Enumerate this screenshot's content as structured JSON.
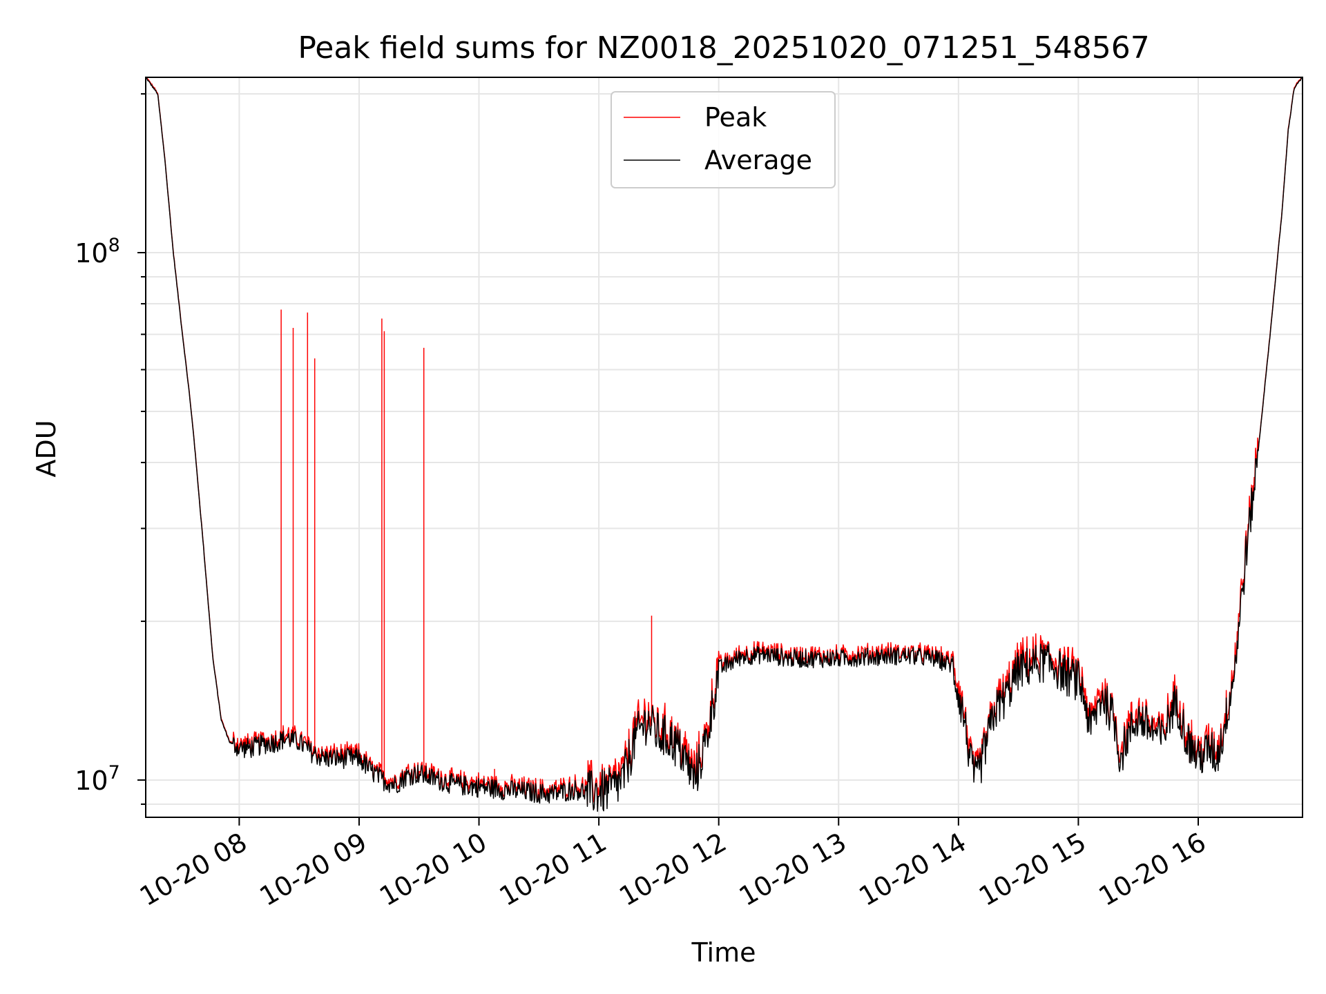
{
  "chart_data": {
    "type": "line",
    "title": "Peak field sums for NZ0018_20251020_071251_548567",
    "xlabel": "Time",
    "ylabel": "ADU",
    "xlim": [
      7.22,
      16.87
    ],
    "ylim": [
      8500000,
      215000000
    ],
    "yscale": "log",
    "grid": true,
    "legend_position": "upper center",
    "x_ticks": [
      {
        "value": 8,
        "label": "10-20 08"
      },
      {
        "value": 9,
        "label": "10-20 09"
      },
      {
        "value": 10,
        "label": "10-20 10"
      },
      {
        "value": 11,
        "label": "10-20 11"
      },
      {
        "value": 12,
        "label": "10-20 12"
      },
      {
        "value": 13,
        "label": "10-20 13"
      },
      {
        "value": 14,
        "label": "10-20 14"
      },
      {
        "value": 15,
        "label": "10-20 15"
      },
      {
        "value": 16,
        "label": "10-20 16"
      }
    ],
    "y_ticks": [
      {
        "value": 10000000,
        "base": "10",
        "exp": "7"
      },
      {
        "value": 100000000,
        "base": "10",
        "exp": "8"
      }
    ],
    "series": [
      {
        "name": "Peak",
        "color": "#ff0000",
        "spikes": [
          {
            "x": 8.35,
            "y": 78000000
          },
          {
            "x": 8.45,
            "y": 72000000
          },
          {
            "x": 8.57,
            "y": 77000000
          },
          {
            "x": 8.63,
            "y": 63000000
          },
          {
            "x": 9.19,
            "y": 75000000
          },
          {
            "x": 9.21,
            "y": 71000000
          },
          {
            "x": 9.54,
            "y": 66000000
          },
          {
            "x": 10.13,
            "y": 10500000
          },
          {
            "x": 11.44,
            "y": 20500000
          }
        ]
      },
      {
        "name": "Average",
        "color": "#000000",
        "x": [
          7.22,
          7.32,
          7.38,
          7.45,
          7.52,
          7.58,
          7.62,
          7.7,
          7.78,
          7.85,
          7.92,
          8.0,
          8.1,
          8.2,
          8.3,
          8.4,
          8.5,
          8.6,
          8.7,
          8.8,
          8.9,
          9.0,
          9.1,
          9.2,
          9.3,
          9.4,
          9.5,
          9.6,
          9.8,
          10.0,
          10.2,
          10.4,
          10.6,
          10.7,
          10.8,
          10.9,
          11.0,
          11.1,
          11.2,
          11.3,
          11.4,
          11.5,
          11.6,
          11.7,
          11.8,
          11.85,
          11.9,
          12.0,
          12.2,
          12.4,
          12.6,
          12.8,
          13.0,
          13.2,
          13.4,
          13.6,
          13.8,
          13.95,
          14.05,
          14.1,
          14.15,
          14.2,
          14.3,
          14.4,
          14.5,
          14.6,
          14.7,
          14.8,
          14.9,
          15.0,
          15.05,
          15.1,
          15.2,
          15.3,
          15.35,
          15.4,
          15.5,
          15.6,
          15.7,
          15.8,
          15.85,
          15.9,
          16.0,
          16.1,
          16.15,
          16.2,
          16.3,
          16.4,
          16.5,
          16.6,
          16.7,
          16.75,
          16.8,
          16.87
        ],
        "y": [
          215000000,
          200000000,
          150000000,
          100000000,
          72000000,
          55000000,
          45000000,
          28000000,
          17000000,
          13000000,
          11800000,
          11500000,
          11500000,
          11700000,
          11800000,
          12000000,
          11800000,
          11300000,
          11000000,
          11000000,
          11000000,
          11000000,
          10400000,
          10000000,
          9800000,
          10200000,
          10300000,
          10100000,
          9800000,
          9700000,
          9600000,
          9500000,
          9400000,
          9500000,
          9600000,
          9500000,
          9500000,
          9600000,
          10000000,
          12000000,
          13000000,
          12200000,
          12000000,
          11200000,
          10000000,
          11000000,
          12000000,
          16200000,
          17200000,
          17300000,
          17000000,
          17000000,
          17000000,
          17100000,
          17200000,
          17200000,
          17000000,
          16500000,
          13000000,
          10800000,
          10000000,
          11000000,
          13500000,
          14500000,
          16200000,
          16500000,
          16800000,
          16500000,
          15800000,
          15500000,
          14300000,
          12500000,
          14500000,
          13000000,
          11000000,
          12000000,
          13200000,
          12500000,
          12000000,
          14000000,
          13500000,
          12000000,
          11000000,
          11500000,
          11000000,
          12000000,
          16000000,
          27000000,
          42000000,
          70000000,
          120000000,
          170000000,
          205000000,
          215000000
        ]
      }
    ]
  }
}
